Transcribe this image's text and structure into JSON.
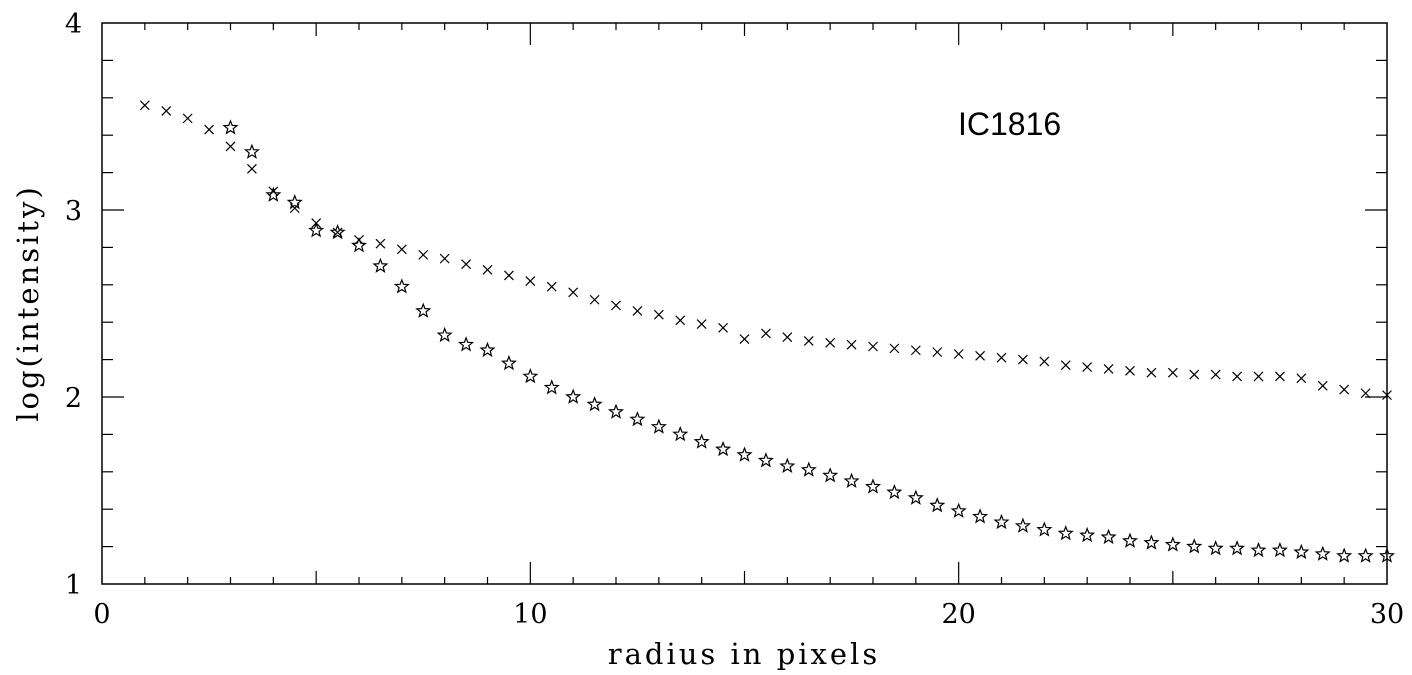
{
  "chart_data": {
    "type": "scatter",
    "title": "",
    "xlabel": "radius in pixels",
    "ylabel": "log(intensity)",
    "xlim": [
      0,
      30
    ],
    "ylim": [
      1,
      4
    ],
    "x_ticks": [
      "0",
      "10",
      "20",
      "30"
    ],
    "y_ticks": [
      "1",
      "2",
      "3",
      "4"
    ],
    "grid": false,
    "annotation": "IC1816",
    "series": [
      {
        "marker": "cross",
        "x": [
          1.0,
          1.5,
          2.0,
          2.5,
          3.0,
          3.5,
          4.0,
          4.5,
          5.0,
          5.5,
          6.0,
          6.5,
          7.0,
          7.5,
          8.0,
          8.5,
          9.0,
          9.5,
          10.0,
          10.5,
          11.0,
          11.5,
          12.0,
          12.5,
          13.0,
          13.5,
          14.0,
          14.5,
          15.0,
          15.5,
          16.0,
          16.5,
          17.0,
          17.5,
          18.0,
          18.5,
          19.0,
          19.5,
          20.0,
          20.5,
          21.0,
          21.5,
          22.0,
          22.5,
          23.0,
          23.5,
          24.0,
          24.5,
          25.0,
          25.5,
          26.0,
          26.5,
          27.0,
          27.5,
          28.0,
          28.5,
          29.0,
          29.5,
          30.0
        ],
        "y": [
          3.56,
          3.53,
          3.49,
          3.43,
          3.34,
          3.22,
          3.1,
          3.01,
          2.93,
          2.88,
          2.84,
          2.82,
          2.79,
          2.76,
          2.74,
          2.71,
          2.68,
          2.65,
          2.62,
          2.59,
          2.56,
          2.52,
          2.49,
          2.46,
          2.44,
          2.41,
          2.39,
          2.37,
          2.31,
          2.34,
          2.32,
          2.3,
          2.29,
          2.28,
          2.27,
          2.26,
          2.25,
          2.24,
          2.23,
          2.22,
          2.21,
          2.2,
          2.19,
          2.17,
          2.16,
          2.15,
          2.14,
          2.13,
          2.13,
          2.12,
          2.12,
          2.11,
          2.11,
          2.11,
          2.1,
          2.06,
          2.04,
          2.02,
          2.01
        ]
      },
      {
        "marker": "star",
        "x": [
          3.0,
          3.5,
          4.0,
          4.5,
          5.0,
          5.5,
          6.0,
          6.5,
          7.0,
          7.5,
          8.0,
          8.5,
          9.0,
          9.5,
          10.0,
          10.5,
          11.0,
          11.5,
          12.0,
          12.5,
          13.0,
          13.5,
          14.0,
          14.5,
          15.0,
          15.5,
          16.0,
          16.5,
          17.0,
          17.5,
          18.0,
          18.5,
          19.0,
          19.5,
          20.0,
          20.5,
          21.0,
          21.5,
          22.0,
          22.5,
          23.0,
          23.5,
          24.0,
          24.5,
          25.0,
          25.5,
          26.0,
          26.5,
          27.0,
          27.5,
          28.0,
          28.5,
          29.0,
          29.5,
          30.0
        ],
        "y": [
          3.44,
          3.31,
          3.08,
          3.04,
          2.89,
          2.88,
          2.81,
          2.7,
          2.59,
          2.46,
          2.33,
          2.28,
          2.25,
          2.18,
          2.11,
          2.05,
          2.0,
          1.96,
          1.92,
          1.88,
          1.84,
          1.8,
          1.76,
          1.72,
          1.69,
          1.66,
          1.63,
          1.61,
          1.58,
          1.55,
          1.52,
          1.49,
          1.46,
          1.42,
          1.39,
          1.36,
          1.33,
          1.31,
          1.29,
          1.27,
          1.26,
          1.25,
          1.23,
          1.22,
          1.21,
          1.2,
          1.19,
          1.19,
          1.18,
          1.18,
          1.17,
          1.16,
          1.15,
          1.15,
          1.15
        ]
      }
    ]
  }
}
